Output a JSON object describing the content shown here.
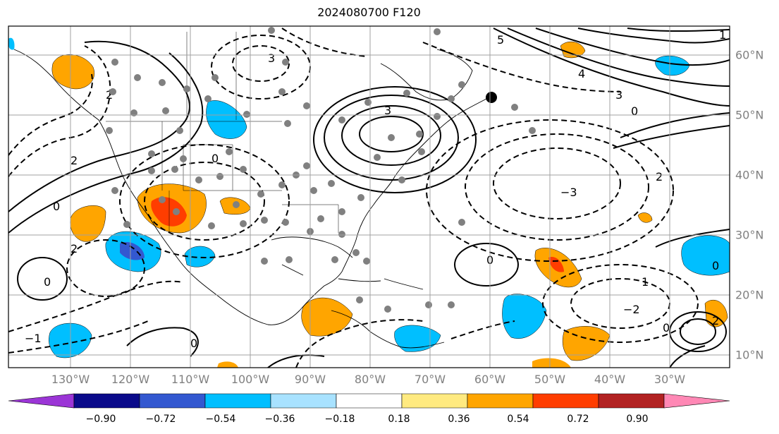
{
  "title": "2024080700 F120",
  "lon_labels": [
    "130°W",
    "120°W",
    "110°W",
    "100°W",
    "90°W",
    "80°W",
    "70°W",
    "60°W",
    "50°W",
    "40°W",
    "30°W"
  ],
  "lat_labels": [
    "60°N",
    "50°N",
    "40°N",
    "30°N",
    "20°N",
    "10°N"
  ],
  "colorbar": {
    "ticks": [
      "−0.90",
      "−0.72",
      "−0.54",
      "−0.36",
      "−0.18",
      "0.18",
      "0.36",
      "0.54",
      "0.72",
      "0.90"
    ],
    "colors": [
      "#9b35d6",
      "#0a0a8a",
      "#3358d0",
      "#00bfff",
      "#a8e2ff",
      "#ffffff",
      "#ffea80",
      "#ffa500",
      "#ff3d00",
      "#b22222",
      "#ff88b5"
    ]
  },
  "contour_labels": [
    "0",
    "2",
    "3",
    "4",
    "5",
    "1",
    "−1",
    "−2",
    "−3"
  ],
  "map_elements": {
    "coastlines": "coastline",
    "contours_solid": "positive-contours",
    "contours_dashed": "negative-contours",
    "stations": "station-dots"
  }
}
